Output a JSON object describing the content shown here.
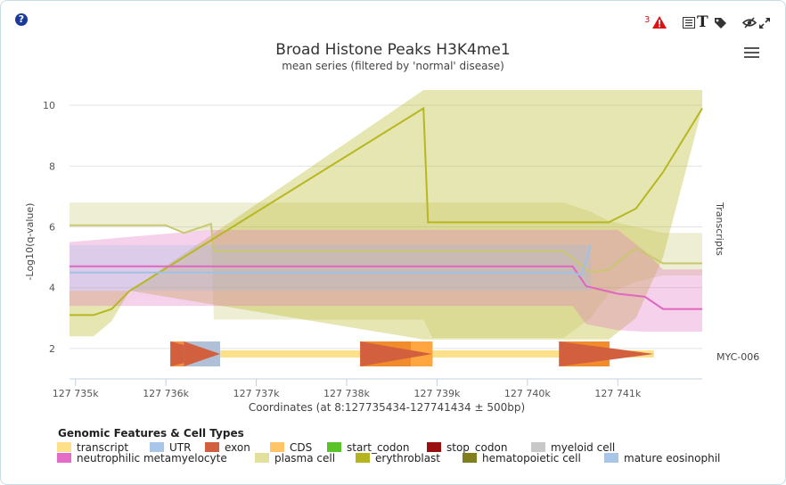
{
  "toolbar": {
    "help_icon": "question-icon",
    "warning_count": "3",
    "warning_icon": "warning-triangle-icon",
    "list_icon": "list-icon",
    "text_label": "T",
    "tag_icon": "tag-icon",
    "visibility_icon": "eye-slash-icon",
    "expand_icon": "expand-icon",
    "menu_icon": "hamburger-menu-icon"
  },
  "chart_data": {
    "type": "line",
    "title": "Broad Histone Peaks H3K4me1",
    "subtitle": "mean series (filtered by 'normal' disease)",
    "ylabel": "-Log10(q-value)",
    "xlabel": "Coordinates (at 8:127735434-127741434 ± 500bp)",
    "right_label": "Transcripts",
    "transcript_label": "MYC-006",
    "xlim": [
      127734934,
      127741934
    ],
    "ylim": [
      1,
      10.5
    ],
    "y_ticks": [
      2,
      4,
      6,
      8,
      10
    ],
    "x_ticks": [
      127735000,
      127736000,
      127737000,
      127738000,
      127739000,
      127740000,
      127741000
    ],
    "x_tick_labels": [
      "127 735k",
      "127 736k",
      "127 737k",
      "127 738k",
      "127 739k",
      "127 740k",
      "127 741k"
    ],
    "series": [
      {
        "name": "plasma cell",
        "color": "#c8c870",
        "x": [
          127734934,
          127736000,
          127736200,
          127736500,
          127736530,
          127738850,
          127738950,
          127740400,
          127740700,
          127740900,
          127741200,
          127741500,
          127741934
        ],
        "values": [
          6.05,
          6.05,
          5.8,
          6.1,
          5.2,
          5.2,
          5.2,
          5.2,
          4.5,
          4.6,
          5.3,
          4.8,
          4.8
        ],
        "lower": [
          6.05,
          6.05,
          5.8,
          5.9,
          2.95,
          2.95,
          2.35,
          2.35,
          3.0,
          3.8,
          4.2,
          4.4,
          4.4
        ],
        "upper": [
          6.8,
          6.8,
          6.8,
          6.8,
          6.8,
          6.8,
          6.8,
          6.8,
          6.5,
          6.2,
          6.0,
          5.8,
          5.8
        ]
      },
      {
        "name": "erythroblast",
        "color": "#b7b721",
        "x": [
          127734934,
          127735200,
          127735400,
          127735600,
          127738850,
          127738900,
          127739500,
          127740400,
          127740900,
          127741200,
          127741500,
          127741934
        ],
        "values": [
          3.1,
          3.1,
          3.3,
          3.9,
          9.9,
          6.15,
          6.15,
          6.15,
          6.15,
          6.6,
          7.8,
          9.9
        ],
        "lower": [
          2.4,
          2.4,
          2.9,
          3.9,
          2.3,
          2.3,
          2.3,
          2.3,
          2.3,
          3.0,
          5.0,
          9.9
        ],
        "upper": [
          3.9,
          3.9,
          3.9,
          3.9,
          10.5,
          10.5,
          10.5,
          10.5,
          10.5,
          10.5,
          10.5,
          10.5
        ]
      },
      {
        "name": "neutrophilic metamyelocyte",
        "color": "#e066c0",
        "x": [
          127734934,
          127736500,
          127738850,
          127740500,
          127740650,
          127741000,
          127741300,
          127741500,
          127741934
        ],
        "values": [
          4.7,
          4.7,
          4.7,
          4.7,
          4.05,
          3.8,
          3.7,
          3.3,
          3.3
        ],
        "lower": [
          3.4,
          3.4,
          3.4,
          3.4,
          2.8,
          2.6,
          2.55,
          2.55,
          2.55
        ],
        "upper": [
          5.5,
          5.9,
          5.9,
          5.9,
          5.9,
          5.9,
          5.2,
          4.6,
          4.6
        ]
      },
      {
        "name": "mature eosinophil",
        "color": "#a0c0e4",
        "x": [
          127734934,
          127740500,
          127740600,
          127740700
        ],
        "values": [
          4.5,
          4.5,
          4.4,
          5.4
        ],
        "lower": [
          3.9,
          3.9,
          3.9,
          3.9
        ],
        "upper": [
          5.4,
          5.4,
          5.4,
          5.4
        ]
      }
    ],
    "transcript_features": [
      {
        "type": "transcript",
        "start": 127736050,
        "end": 127741400
      },
      {
        "type": "exon",
        "start": 127736050,
        "end": 127736600
      },
      {
        "type": "UTR",
        "start": 127736200,
        "end": 127736600
      },
      {
        "type": "CDS",
        "start": 127738150,
        "end": 127738950
      },
      {
        "type": "exon",
        "start": 127738150,
        "end": 127738950
      },
      {
        "type": "CDS",
        "start": 127740350,
        "end": 127740900
      },
      {
        "type": "exon",
        "start": 127740350,
        "end": 127741400
      }
    ]
  },
  "legend": {
    "title": "Genomic Features & Cell Types",
    "row1": [
      {
        "label": "transcript",
        "color": "#ffe08a"
      },
      {
        "label": "UTR",
        "color": "#a9c5e8"
      },
      {
        "label": "exon",
        "color": "#d2603e"
      },
      {
        "label": "CDS",
        "color": "#ffc466"
      },
      {
        "label": "start_codon",
        "color": "#5bc22a"
      },
      {
        "label": "stop_codon",
        "color": "#9a0f0f"
      },
      {
        "label": "myeloid cell",
        "color": "#c8c8c8"
      }
    ],
    "row2": [
      {
        "label": "neutrophilic metamyelocyte",
        "color": "#e36cc6"
      },
      {
        "label": "plasma cell",
        "color": "#e2e09c"
      },
      {
        "label": "erythroblast",
        "color": "#b5b522"
      },
      {
        "label": "hematopoietic cell",
        "color": "#7f7f1e"
      },
      {
        "label": "mature eosinophil",
        "color": "#a9c5e8"
      }
    ]
  }
}
